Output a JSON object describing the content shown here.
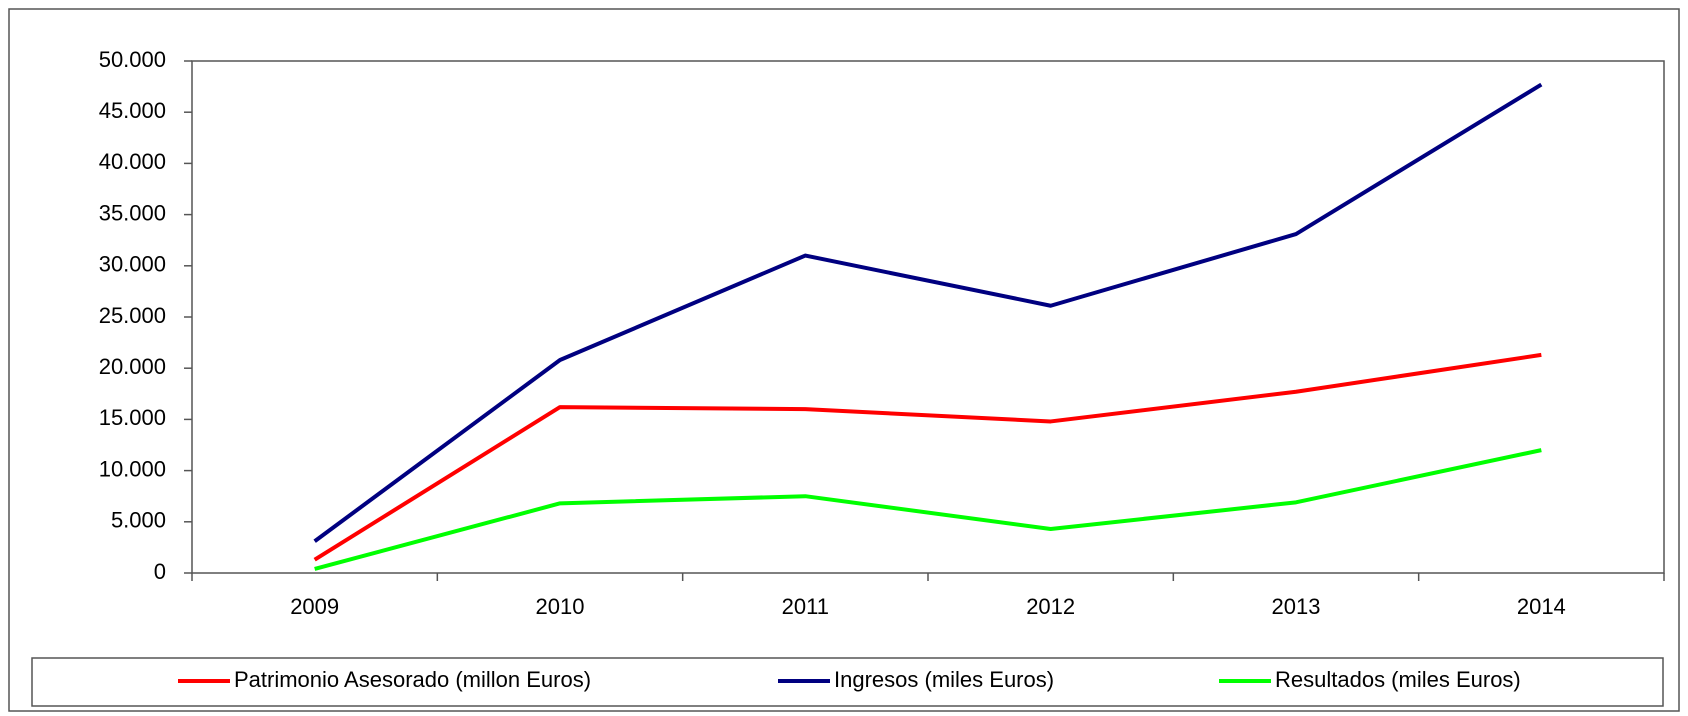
{
  "chart_data": {
    "type": "line",
    "categories": [
      "2009",
      "2010",
      "2011",
      "2012",
      "2013",
      "2014"
    ],
    "series": [
      {
        "name": "Patrimonio Asesorado (millon Euros)",
        "color": "#ff0000",
        "values": [
          1300,
          16200,
          16000,
          14800,
          17700,
          21300
        ]
      },
      {
        "name": "Ingresos (miles Euros)",
        "color": "#000080",
        "values": [
          3100,
          20800,
          31000,
          26100,
          33100,
          47700
        ]
      },
      {
        "name": "Resultados (miles Euros)",
        "color": "#00ff00",
        "values": [
          400,
          6800,
          7500,
          4300,
          6900,
          12000
        ]
      }
    ],
    "ylim": [
      0,
      50000
    ],
    "yticks": [
      0,
      {
        "value": 5000,
        "label": "5.000"
      },
      {
        "value": 10000,
        "label": "10.000"
      },
      {
        "value": 15000,
        "label": "15.000"
      },
      {
        "value": 20000,
        "label": "20.000"
      },
      {
        "value": 25000,
        "label": "25.000"
      },
      {
        "value": 30000,
        "label": "30.000"
      },
      {
        "value": 35000,
        "label": "35.000"
      },
      {
        "value": 40000,
        "label": "40.000"
      },
      {
        "value": 45000,
        "label": "45.000"
      },
      {
        "value": 50000,
        "label": "50.000"
      }
    ],
    "legend": "bottom"
  }
}
